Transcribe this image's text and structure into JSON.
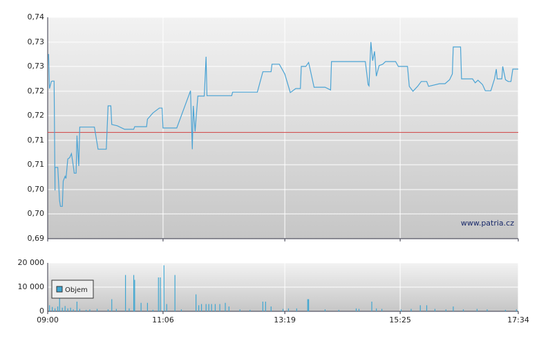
{
  "chart_data": [
    {
      "type": "line",
      "watermark": "www.patria.cz",
      "color": "#4aa3d4",
      "reference_line": 0.714,
      "reference_color": "#d04040",
      "grid": true,
      "x": [
        "09:01",
        "09:02",
        "09:04",
        "09:05",
        "09:07",
        "09:08",
        "09:08",
        "09:11",
        "09:13",
        "09:14",
        "09:16",
        "09:17",
        "09:19",
        "09:20",
        "09:22",
        "09:24",
        "09:26",
        "09:28",
        "09:29",
        "09:31",
        "09:32",
        "09:34",
        "09:35",
        "09:51",
        "09:55",
        "10:04",
        "10:06",
        "10:09",
        "10:10",
        "10:16",
        "10:24",
        "10:34",
        "10:35",
        "10:48",
        "10:49",
        "10:55",
        "11:02",
        "11:05",
        "11:06",
        "11:21",
        "11:36",
        "11:38",
        "11:39",
        "11:41",
        "11:44",
        "11:51",
        "11:53",
        "11:54",
        "12:21",
        "12:22",
        "12:49",
        "12:55",
        "13:04",
        "13:05",
        "13:13",
        "13:19",
        "13:25",
        "13:31",
        "13:36",
        "13:37",
        "13:42",
        "13:45",
        "13:46",
        "13:51",
        "14:03",
        "14:09",
        "14:10",
        "14:47",
        "14:50",
        "14:51",
        "14:53",
        "14:55",
        "14:57",
        "14:59",
        "15:02",
        "15:06",
        "15:09",
        "15:20",
        "15:23",
        "15:33",
        "15:35",
        "15:39",
        "15:44",
        "15:48",
        "15:54",
        "15:56",
        "16:08",
        "16:14",
        "16:19",
        "16:22",
        "16:23",
        "16:31",
        "16:32",
        "16:44",
        "16:47",
        "16:50",
        "16:55",
        "16:58",
        "17:04",
        "17:08",
        "17:10",
        "17:11",
        "17:16",
        "17:17",
        "17:20",
        "17:23",
        "17:26",
        "17:28",
        "17:34"
      ],
      "values": [
        0.7317,
        0.7239,
        0.7255,
        0.7256,
        0.7256,
        0.7009,
        0.7061,
        0.7061,
        0.6986,
        0.6973,
        0.6973,
        0.703,
        0.7041,
        0.7036,
        0.708,
        0.7083,
        0.7092,
        0.7064,
        0.7048,
        0.7048,
        0.7133,
        0.7064,
        0.7152,
        0.7152,
        0.7102,
        0.7102,
        0.72,
        0.72,
        0.7158,
        0.7155,
        0.7147,
        0.7147,
        0.7153,
        0.7153,
        0.717,
        0.7184,
        0.7195,
        0.7195,
        0.715,
        0.715,
        0.7234,
        0.7102,
        0.72,
        0.7142,
        0.7222,
        0.7222,
        0.7311,
        0.7223,
        0.7223,
        0.7231,
        0.7231,
        0.7277,
        0.7277,
        0.7294,
        0.7294,
        0.7272,
        0.723,
        0.7239,
        0.7239,
        0.7289,
        0.7289,
        0.7298,
        0.7289,
        0.7242,
        0.7242,
        0.7236,
        0.73,
        0.73,
        0.7248,
        0.7245,
        0.7344,
        0.7302,
        0.7323,
        0.7267,
        0.7291,
        0.7294,
        0.73,
        0.73,
        0.7289,
        0.7289,
        0.7244,
        0.7233,
        0.7244,
        0.7255,
        0.7255,
        0.7244,
        0.725,
        0.725,
        0.7259,
        0.7272,
        0.7333,
        0.7333,
        0.7261,
        0.7261,
        0.7252,
        0.7258,
        0.7248,
        0.7234,
        0.7234,
        0.7261,
        0.7283,
        0.7261,
        0.7261,
        0.7289,
        0.7259,
        0.7255,
        0.7255,
        0.7283,
        0.7283
      ],
      "xlim": [
        "09:00",
        "17:34"
      ],
      "xticks": [
        "09:00",
        "11:06",
        "13:19",
        "15:25",
        "17:34"
      ],
      "ylim": [
        0.69,
        0.74
      ],
      "yticks": [
        {
          "value": 0.69,
          "label": "0,69"
        },
        {
          "value": 0.6956,
          "label": "0,70"
        },
        {
          "value": 0.7011,
          "label": "0,70"
        },
        {
          "value": 0.7067,
          "label": "0,71"
        },
        {
          "value": 0.7122,
          "label": "0,71"
        },
        {
          "value": 0.7178,
          "label": "0,72"
        },
        {
          "value": 0.7233,
          "label": "0,72"
        },
        {
          "value": 0.7289,
          "label": "0,73"
        },
        {
          "value": 0.7344,
          "label": "0,73"
        },
        {
          "value": 0.74,
          "label": "0,74"
        }
      ]
    },
    {
      "type": "bar",
      "grid": true,
      "legend": "top-left",
      "x": [
        "09:02",
        "09:05",
        "09:08",
        "09:11",
        "09:13",
        "09:16",
        "09:19",
        "09:22",
        "09:25",
        "09:28",
        "09:32",
        "09:35",
        "09:42",
        "09:46",
        "09:54",
        "10:06",
        "10:10",
        "10:15",
        "10:25",
        "10:29",
        "10:34",
        "10:35",
        "10:42",
        "10:49",
        "10:55",
        "11:01",
        "11:03",
        "11:07",
        "11:10",
        "11:19",
        "11:26",
        "11:42",
        "11:45",
        "11:48",
        "11:53",
        "11:56",
        "11:59",
        "12:03",
        "12:08",
        "12:14",
        "12:18",
        "12:30",
        "12:41",
        "12:55",
        "12:58",
        "13:04",
        "13:17",
        "13:23",
        "13:32",
        "13:44",
        "13:45",
        "14:03",
        "14:18",
        "14:37",
        "14:40",
        "14:54",
        "14:59",
        "15:05",
        "15:26",
        "15:37",
        "15:47",
        "15:54",
        "16:03",
        "16:15",
        "16:23",
        "16:34",
        "16:49",
        "17:00",
        "17:20",
        "17:32"
      ],
      "series": [
        {
          "name": "Objem",
          "color": "#3ea6d1",
          "values": [
            2500,
            1800,
            1200,
            2000,
            6000,
            1500,
            2200,
            1200,
            1500,
            800,
            4000,
            1000,
            600,
            800,
            1000,
            800,
            5000,
            1000,
            15000,
            1200,
            15000,
            13000,
            3500,
            3500,
            600,
            14000,
            14000,
            19000,
            3000,
            15000,
            800,
            7000,
            2500,
            3000,
            3000,
            3000,
            3000,
            3000,
            3000,
            3500,
            2000,
            800,
            600,
            4000,
            4000,
            2000,
            1000,
            1200,
            1200,
            5000,
            5000,
            800,
            600,
            1200,
            1000,
            4000,
            1200,
            1000,
            800,
            1000,
            2500,
            2500,
            1000,
            800,
            2000,
            800,
            1000,
            800,
            600,
            800
          ]
        }
      ],
      "xlim": [
        "09:00",
        "17:34"
      ],
      "xticks": [
        "09:00",
        "11:06",
        "13:19",
        "15:25",
        "17:34"
      ],
      "ylim": [
        0,
        20000
      ],
      "yticks": [
        0,
        {
          "value": 10000,
          "label": "10 000"
        },
        {
          "value": 20000,
          "label": "20 000"
        }
      ]
    }
  ]
}
